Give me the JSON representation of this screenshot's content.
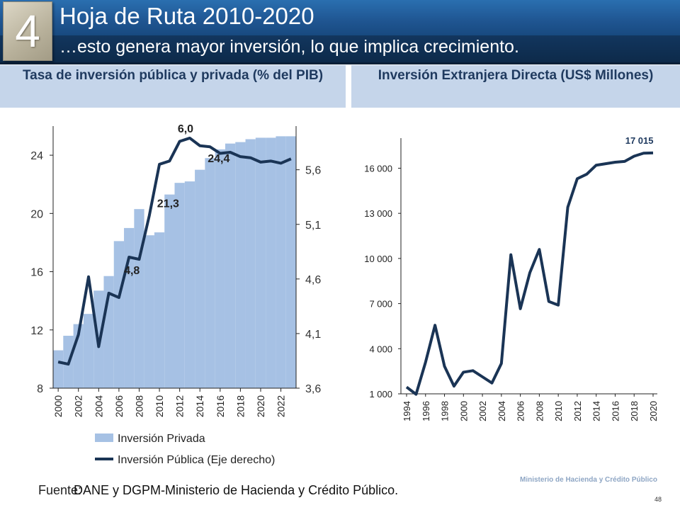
{
  "header": {
    "section_number": "4",
    "title": "Hoja de Ruta 2010-2020",
    "subtitle": "…esto genera mayor inversión, lo que implica crecimiento."
  },
  "panels": {
    "left_title": "Tasa de inversión pública  y privada (% del PIB)",
    "right_title": "Inversión Extranjera Directa (US$ Millones)"
  },
  "footer": {
    "source_label": "Fuente:",
    "source_text": "DANE y DGPM-Ministerio de Hacienda y Crédito Público.",
    "page_number": "48",
    "watermark": "Ministerio de Hacienda y Crédito Público"
  },
  "colors": {
    "bar": "#a6c1e4",
    "line": "#1a3455",
    "header_blue": "#1f5591",
    "header_navy": "#0d2a4a"
  },
  "chart_data": [
    {
      "type": "bar",
      "title": "Tasa de inversión pública  y privada (% del PIB)",
      "x": [
        2000,
        2001,
        2002,
        2003,
        2004,
        2005,
        2006,
        2007,
        2008,
        2009,
        2010,
        2011,
        2012,
        2013,
        2014,
        2015,
        2016,
        2017,
        2018,
        2019,
        2020,
        2021,
        2022,
        2023
      ],
      "x_ticks": [
        "2000",
        "2002",
        "2004",
        "2006",
        "2008",
        "2010",
        "2012",
        "2014",
        "2016",
        "2018",
        "2020",
        "2022"
      ],
      "y_ticks": [
        "8",
        "12",
        "16",
        "20",
        "24"
      ],
      "y2_ticks": [
        "3,6",
        "4,1",
        "4,6",
        "5,1",
        "5,6"
      ],
      "ylim": [
        8,
        26
      ],
      "y2lim": [
        3.6,
        6.0
      ],
      "series": [
        {
          "name": "Inversión Privada",
          "type": "bar",
          "axis": "left",
          "values": [
            10.6,
            11.6,
            12.4,
            13.1,
            14.7,
            15.7,
            18.1,
            19.0,
            20.3,
            18.5,
            18.7,
            21.3,
            22.1,
            22.2,
            23.0,
            23.8,
            24.4,
            24.8,
            24.9,
            25.1,
            25.2,
            25.2,
            25.3,
            25.3
          ]
        },
        {
          "name": "Inversión Pública (Eje derecho)",
          "type": "line",
          "axis": "right",
          "values": [
            3.84,
            3.82,
            4.09,
            4.62,
            3.98,
            4.47,
            4.43,
            4.8,
            4.78,
            5.18,
            5.65,
            5.68,
            5.86,
            5.89,
            5.82,
            5.81,
            5.75,
            5.76,
            5.72,
            5.71,
            5.67,
            5.68,
            5.66,
            5.7
          ]
        }
      ],
      "annotations": [
        "6,0",
        "24,4",
        "21,3",
        "4,8"
      ],
      "legend_position": "bottom"
    },
    {
      "type": "line",
      "title": "Inversión Extranjera Directa (US$ Millones)",
      "x": [
        1994,
        1995,
        1996,
        1997,
        1998,
        1999,
        2000,
        2001,
        2002,
        2003,
        2004,
        2005,
        2006,
        2007,
        2008,
        2009,
        2010,
        2011,
        2012,
        2013,
        2014,
        2015,
        2016,
        2017,
        2018,
        2019,
        2020
      ],
      "x_ticks": [
        "1994",
        "1996",
        "1998",
        "2000",
        "2002",
        "2004",
        "2006",
        "2008",
        "2010",
        "2012",
        "2014",
        "2016",
        "2018",
        "2020"
      ],
      "y_ticks": [
        "1 000",
        "4 000",
        "7 000",
        "10 000",
        "13 000",
        "16 000"
      ],
      "ylim": [
        1000,
        18000
      ],
      "series": [
        {
          "values": [
            1450,
            970,
            3100,
            5560,
            2830,
            1510,
            2440,
            2540,
            2130,
            1720,
            3020,
            10250,
            6660,
            9050,
            10600,
            7140,
            6900,
            13400,
            15300,
            15600,
            16200,
            16300,
            16400,
            16450,
            16800,
            17000,
            17015
          ]
        }
      ],
      "annotations": [
        "17 015"
      ]
    }
  ]
}
